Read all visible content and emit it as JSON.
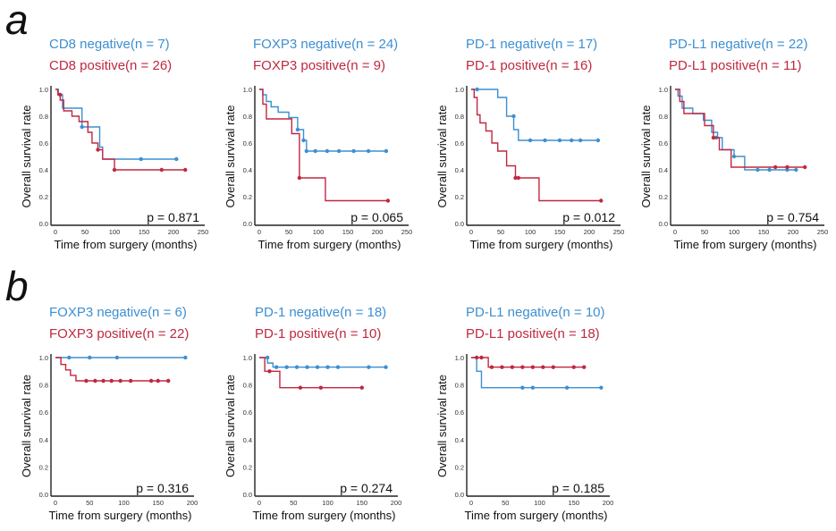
{
  "panels": [
    {
      "label": "a"
    },
    {
      "label": "b"
    }
  ],
  "colors": {
    "negative": "#3d8fd1",
    "positive": "#c0283f"
  },
  "chart_data": [
    {
      "type": "line",
      "panel": "a",
      "xlabel": "Time from surgery (months)",
      "ylabel": "Overall survival rate",
      "xlim": [
        0,
        250
      ],
      "ylim": [
        0,
        1
      ],
      "xticks": [
        "0",
        "50",
        "100",
        "150",
        "200",
        "250"
      ],
      "yticks": [
        "0.0",
        "0.2",
        "0.4",
        "0.6",
        "0.8",
        "1.0"
      ],
      "p_value": "p = 0.871",
      "series": [
        {
          "name": "CD8 negative",
          "n": "(n = 7)",
          "color": "#3d8fd1",
          "x": [
            0,
            5,
            12,
            20,
            45,
            60,
            75,
            80,
            205
          ],
          "y": [
            1.0,
            0.96,
            0.86,
            0.86,
            0.72,
            0.72,
            0.57,
            0.48,
            0.48
          ],
          "censor": [
            [
              45,
              0.72
            ],
            [
              145,
              0.48
            ],
            [
              205,
              0.48
            ]
          ]
        },
        {
          "name": "CD8 positive",
          "n": "(n = 26)",
          "color": "#c0283f",
          "x": [
            0,
            4,
            8,
            14,
            28,
            40,
            55,
            62,
            72,
            80,
            100,
            220
          ],
          "y": [
            1.0,
            0.96,
            0.92,
            0.84,
            0.8,
            0.76,
            0.68,
            0.6,
            0.55,
            0.48,
            0.4,
            0.4
          ],
          "censor": [
            [
              8,
              0.96
            ],
            [
              72,
              0.55
            ],
            [
              100,
              0.4
            ],
            [
              180,
              0.4
            ],
            [
              220,
              0.4
            ]
          ]
        }
      ]
    },
    {
      "type": "line",
      "panel": "a",
      "xlabel": "Time from surgery (months)",
      "ylabel": "Overall survival rate",
      "xlim": [
        0,
        250
      ],
      "ylim": [
        0,
        1
      ],
      "xticks": [
        "0",
        "50",
        "100",
        "150",
        "200",
        "250"
      ],
      "yticks": [
        "0.0",
        "0.2",
        "0.4",
        "0.6",
        "0.8",
        "1.0"
      ],
      "p_value": "p = 0.065",
      "series": [
        {
          "name": "FOXP3 negative",
          "n": "(n = 24)",
          "color": "#3d8fd1",
          "x": [
            0,
            6,
            12,
            20,
            32,
            50,
            65,
            75,
            80,
            215
          ],
          "y": [
            1.0,
            0.96,
            0.91,
            0.87,
            0.83,
            0.79,
            0.7,
            0.62,
            0.54,
            0.54
          ],
          "censor": [
            [
              65,
              0.7
            ],
            [
              75,
              0.62
            ],
            [
              80,
              0.54
            ],
            [
              95,
              0.54
            ],
            [
              115,
              0.54
            ],
            [
              135,
              0.54
            ],
            [
              160,
              0.54
            ],
            [
              185,
              0.54
            ],
            [
              215,
              0.54
            ]
          ]
        },
        {
          "name": "FOXP3 positive",
          "n": "(n = 9)",
          "color": "#c0283f",
          "x": [
            0,
            6,
            12,
            55,
            68,
            112,
            218
          ],
          "y": [
            1.0,
            0.89,
            0.78,
            0.67,
            0.34,
            0.17,
            0.17
          ],
          "censor": [
            [
              68,
              0.34
            ],
            [
              218,
              0.17
            ]
          ]
        }
      ]
    },
    {
      "type": "line",
      "panel": "a",
      "xlabel": "Time from surgery (months)",
      "ylabel": "Overall survival rate",
      "xlim": [
        0,
        250
      ],
      "ylim": [
        0,
        1
      ],
      "xticks": [
        "0",
        "50",
        "100",
        "150",
        "200",
        "250"
      ],
      "yticks": [
        "0.0",
        "0.2",
        "0.4",
        "0.6",
        "0.8",
        "1.0"
      ],
      "p_value": "p = 0.012",
      "series": [
        {
          "name": "PD-1 negative",
          "n": "(n = 17)",
          "color": "#3d8fd1",
          "x": [
            0,
            45,
            60,
            72,
            80,
            215
          ],
          "y": [
            1.0,
            0.94,
            0.8,
            0.7,
            0.62,
            0.62
          ],
          "censor": [
            [
              10,
              1.0
            ],
            [
              72,
              0.8
            ],
            [
              100,
              0.62
            ],
            [
              125,
              0.62
            ],
            [
              150,
              0.62
            ],
            [
              170,
              0.62
            ],
            [
              185,
              0.62
            ],
            [
              215,
              0.62
            ]
          ]
        },
        {
          "name": "PD-1 positive",
          "n": "(n = 16)",
          "color": "#c0283f",
          "x": [
            0,
            5,
            10,
            15,
            25,
            35,
            45,
            60,
            75,
            115,
            220
          ],
          "y": [
            1.0,
            0.94,
            0.81,
            0.75,
            0.69,
            0.6,
            0.54,
            0.43,
            0.34,
            0.17,
            0.17
          ],
          "censor": [
            [
              75,
              0.34
            ],
            [
              80,
              0.34
            ],
            [
              220,
              0.17
            ]
          ]
        }
      ]
    },
    {
      "type": "line",
      "panel": "a",
      "xlabel": "Time from surgery (months)",
      "ylabel": "Overall survival rate",
      "xlim": [
        0,
        250
      ],
      "ylim": [
        0,
        1
      ],
      "xticks": [
        "0",
        "50",
        "100",
        "150",
        "200",
        "250"
      ],
      "yticks": [
        "0.0",
        "0.2",
        "0.4",
        "0.6",
        "0.8",
        "1.0"
      ],
      "p_value": "p = 0.754",
      "series": [
        {
          "name": "PD-L1 negative",
          "n": "(n = 22)",
          "color": "#3d8fd1",
          "x": [
            0,
            5,
            12,
            30,
            48,
            62,
            72,
            80,
            100,
            118,
            205
          ],
          "y": [
            1.0,
            0.95,
            0.86,
            0.82,
            0.77,
            0.68,
            0.64,
            0.55,
            0.5,
            0.4,
            0.4
          ],
          "censor": [
            [
              70,
              0.64
            ],
            [
              100,
              0.5
            ],
            [
              140,
              0.4
            ],
            [
              160,
              0.4
            ],
            [
              190,
              0.4
            ],
            [
              205,
              0.4
            ]
          ]
        },
        {
          "name": "PD-L1 positive",
          "n": "(n = 11)",
          "color": "#c0283f",
          "x": [
            0,
            8,
            15,
            50,
            65,
            75,
            95,
            220
          ],
          "y": [
            1.0,
            0.91,
            0.82,
            0.73,
            0.64,
            0.55,
            0.42,
            0.42
          ],
          "censor": [
            [
              65,
              0.64
            ],
            [
              170,
              0.42
            ],
            [
              190,
              0.42
            ],
            [
              220,
              0.42
            ]
          ]
        }
      ]
    },
    {
      "type": "line",
      "panel": "b",
      "xlabel": "Time from surgery (months)",
      "ylabel": "Overall survival rate",
      "xlim": [
        0,
        200
      ],
      "ylim": [
        0,
        1
      ],
      "xticks": [
        "0",
        "50",
        "100",
        "150",
        "200"
      ],
      "yticks": [
        "0.0",
        "0.2",
        "0.4",
        "0.6",
        "0.8",
        "1.0"
      ],
      "p_value": "p = 0.316",
      "series": [
        {
          "name": "FOXP3 negative",
          "n": "(n = 6)",
          "color": "#3d8fd1",
          "x": [
            0,
            190
          ],
          "y": [
            1.0,
            1.0
          ],
          "censor": [
            [
              20,
              1.0
            ],
            [
              50,
              1.0
            ],
            [
              90,
              1.0
            ],
            [
              190,
              1.0
            ]
          ]
        },
        {
          "name": "FOXP3 positive",
          "n": "(n = 22)",
          "color": "#c0283f",
          "x": [
            0,
            8,
            15,
            22,
            30,
            165
          ],
          "y": [
            1.0,
            0.95,
            0.91,
            0.87,
            0.83,
            0.83
          ],
          "censor": [
            [
              45,
              0.83
            ],
            [
              58,
              0.83
            ],
            [
              70,
              0.83
            ],
            [
              82,
              0.83
            ],
            [
              95,
              0.83
            ],
            [
              110,
              0.83
            ],
            [
              140,
              0.83
            ],
            [
              150,
              0.83
            ],
            [
              165,
              0.83
            ]
          ]
        }
      ]
    },
    {
      "type": "line",
      "panel": "b",
      "xlabel": "Time from surgery (months)",
      "ylabel": "Overall survival rate",
      "xlim": [
        0,
        200
      ],
      "ylim": [
        0,
        1
      ],
      "xticks": [
        "0",
        "50",
        "100",
        "150",
        "200"
      ],
      "yticks": [
        "0.0",
        "0.2",
        "0.4",
        "0.6",
        "0.8",
        "1.0"
      ],
      "p_value": "p = 0.274",
      "series": [
        {
          "name": "PD-1 negative",
          "n": "(n = 18)",
          "color": "#3d8fd1",
          "x": [
            0,
            12,
            20,
            185
          ],
          "y": [
            1.0,
            0.96,
            0.93,
            0.93
          ],
          "censor": [
            [
              12,
              1.0
            ],
            [
              25,
              0.93
            ],
            [
              40,
              0.93
            ],
            [
              55,
              0.93
            ],
            [
              70,
              0.93
            ],
            [
              85,
              0.93
            ],
            [
              100,
              0.93
            ],
            [
              115,
              0.93
            ],
            [
              160,
              0.93
            ],
            [
              185,
              0.93
            ]
          ]
        },
        {
          "name": "PD-1 positive",
          "n": "(n = 10)",
          "color": "#c0283f",
          "x": [
            0,
            8,
            30,
            150
          ],
          "y": [
            1.0,
            0.9,
            0.78,
            0.78
          ],
          "censor": [
            [
              15,
              0.9
            ],
            [
              60,
              0.78
            ],
            [
              90,
              0.78
            ],
            [
              150,
              0.78
            ]
          ]
        }
      ]
    },
    {
      "type": "line",
      "panel": "b",
      "xlabel": "Time from surgery (months)",
      "ylabel": "Overall survival rate",
      "xlim": [
        0,
        200
      ],
      "ylim": [
        0,
        1
      ],
      "xticks": [
        "0",
        "50",
        "100",
        "150",
        "200"
      ],
      "yticks": [
        "0.0",
        "0.2",
        "0.4",
        "0.6",
        "0.8",
        "1.0"
      ],
      "p_value": "p = 0.185",
      "series": [
        {
          "name": "PD-L1 negative",
          "n": "(n = 10)",
          "color": "#3d8fd1",
          "x": [
            0,
            8,
            15,
            190
          ],
          "y": [
            1.0,
            0.9,
            0.78,
            0.78
          ],
          "censor": [
            [
              75,
              0.78
            ],
            [
              90,
              0.78
            ],
            [
              140,
              0.78
            ],
            [
              190,
              0.78
            ]
          ]
        },
        {
          "name": "PD-L1 positive",
          "n": "(n = 18)",
          "color": "#c0283f",
          "x": [
            0,
            25,
            165
          ],
          "y": [
            1.0,
            0.93,
            0.93
          ],
          "censor": [
            [
              8,
              1.0
            ],
            [
              15,
              1.0
            ],
            [
              30,
              0.93
            ],
            [
              45,
              0.93
            ],
            [
              60,
              0.93
            ],
            [
              75,
              0.93
            ],
            [
              90,
              0.93
            ],
            [
              105,
              0.93
            ],
            [
              120,
              0.93
            ],
            [
              150,
              0.93
            ],
            [
              165,
              0.93
            ]
          ]
        }
      ]
    }
  ]
}
